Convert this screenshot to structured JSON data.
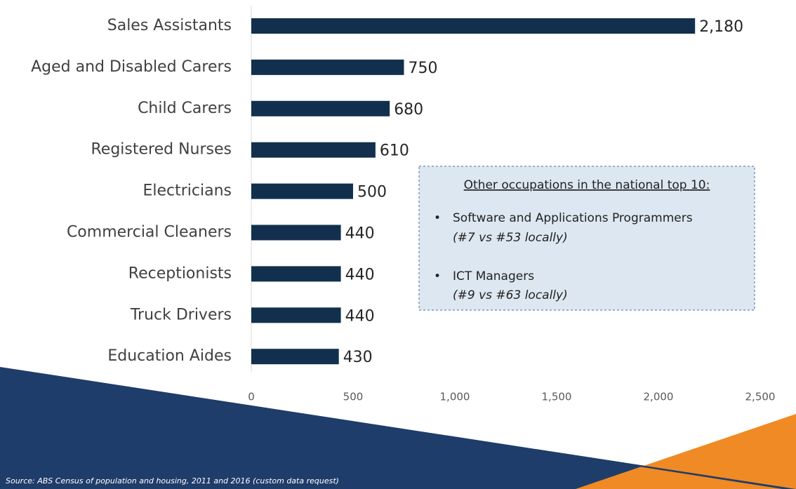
{
  "chart_data": {
    "type": "bar",
    "orientation": "horizontal",
    "categories": [
      "Sales Assistants",
      "Aged and Disabled Carers",
      "Child Carers",
      "Registered Nurses",
      "Electricians",
      "Commercial Cleaners",
      "Receptionists",
      "Truck Drivers",
      "Education Aides"
    ],
    "values": [
      2180,
      750,
      680,
      610,
      500,
      440,
      440,
      440,
      430
    ],
    "value_labels": [
      "2,180",
      "750",
      "680",
      "610",
      "500",
      "440",
      "440",
      "440",
      "430"
    ],
    "color": "#12304d",
    "xlim": [
      0,
      2500
    ],
    "xticks": [
      0,
      500,
      {
        "value": 1000,
        "label": "1,000"
      },
      {
        "value": 1500,
        "label": "1,500"
      },
      {
        "value": 2000,
        "label": "2,000"
      },
      {
        "value": 2500,
        "label": "2,500"
      }
    ],
    "grid": false,
    "annotation": {
      "title": "Other occupations in the national top 10:",
      "items": [
        {
          "name": "Software and Applications Programmers",
          "note": "(#7 vs #53 locally)"
        },
        {
          "name": "ICT Managers",
          "note": "(#9 vs #63 locally)"
        }
      ]
    },
    "source": "Source: ABS Census of population and housing, 2011 and 2016 (custom data request)"
  }
}
